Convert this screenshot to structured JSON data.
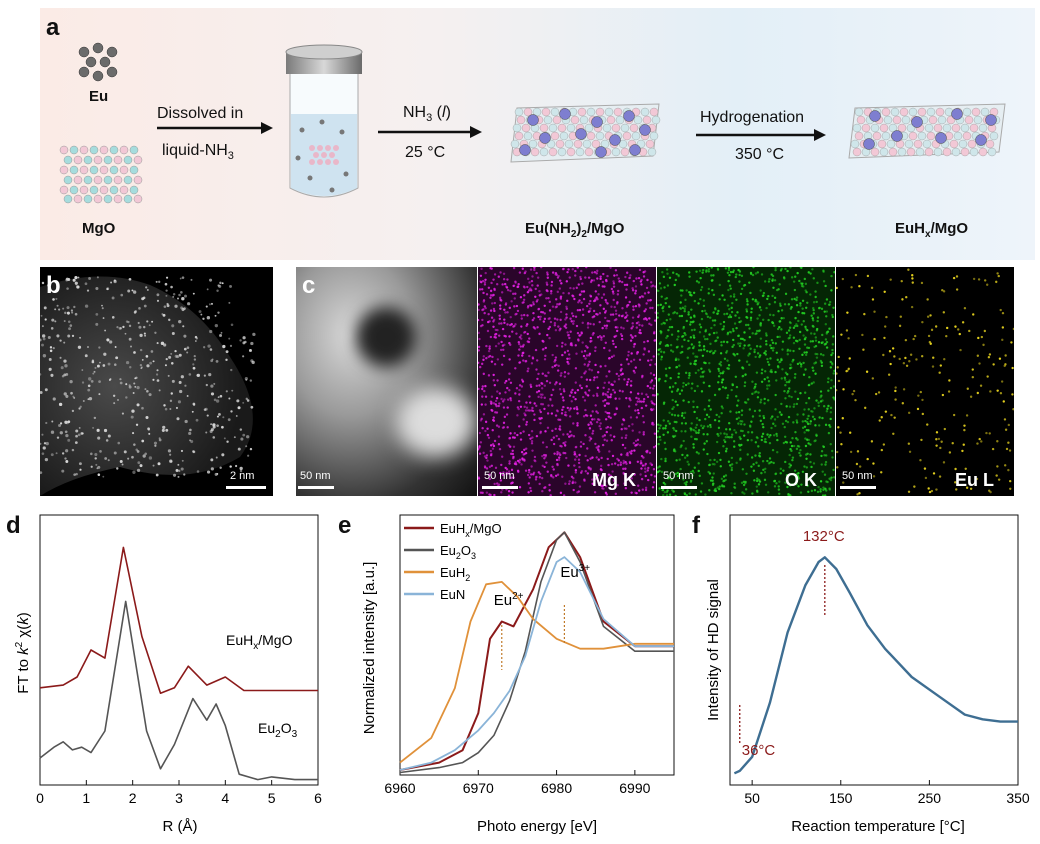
{
  "panel_labels": {
    "a": "a",
    "b": "b",
    "c": "c",
    "d": "d",
    "e": "e",
    "f": "f"
  },
  "scheme": {
    "eu_label": "Eu",
    "mgo_label": "MgO",
    "step1_top": "Dissolved in",
    "step1_bottom_prefix": "liquid-NH",
    "step1_bottom_sub": "3",
    "step2_top_prefix": "NH",
    "step2_top_sub": "3",
    "step2_top_suffix": " (",
    "step2_top_l": "l",
    "step2_top_close": ")",
    "step2_bottom": "25 °C",
    "step3_top": "Hydrogenation",
    "step3_bottom": "350 °C",
    "product1_a": "Eu(NH",
    "product1_sub": "2",
    "product1_b": ")",
    "product1_sub2": "2",
    "product1_c": "/MgO",
    "product2_a": "EuH",
    "product2_sub": "x",
    "product2_c": "/MgO"
  },
  "panel_b": {
    "scalebar": "2 nm"
  },
  "panel_c": {
    "maps": [
      {
        "scalebar": "50 nm",
        "element": ""
      },
      {
        "scalebar": "50 nm",
        "element": "Mg K"
      },
      {
        "scalebar": "50 nm",
        "element": "O K"
      },
      {
        "scalebar": "50 nm",
        "element": "Eu L"
      }
    ]
  },
  "colors": {
    "dark_red": "#8b1a1a",
    "gray": "#555555",
    "orange": "#e0913a",
    "light_blue": "#8ab4d8",
    "steel_blue": "#3e6e92",
    "magenta": "#e020e0",
    "green": "#22cc22",
    "yellow": "#e6d21e"
  },
  "chart_data": [
    {
      "panel": "d",
      "type": "line",
      "xlabel": "R (Å)",
      "ylabel": "FT to k² χ(k)",
      "xlim": [
        0,
        6
      ],
      "x_ticks": [
        "0",
        "1",
        "2",
        "3",
        "4",
        "5",
        "6"
      ],
      "series": [
        {
          "name": "EuHx/MgO",
          "x": [
            0,
            0.5,
            0.8,
            1.1,
            1.4,
            1.8,
            2.2,
            2.6,
            2.9,
            3.2,
            3.6,
            4.0,
            4.4,
            4.8,
            5.3,
            6.0
          ],
          "y": [
            0.36,
            0.37,
            0.4,
            0.5,
            0.47,
            0.88,
            0.55,
            0.34,
            0.36,
            0.44,
            0.37,
            0.4,
            0.35,
            0.35,
            0.35,
            0.35
          ]
        },
        {
          "name": "Eu2O3",
          "x": [
            0,
            0.3,
            0.5,
            0.7,
            0.9,
            1.1,
            1.4,
            1.85,
            2.3,
            2.6,
            2.9,
            3.3,
            3.6,
            3.8,
            4.0,
            4.3,
            4.7,
            5.0,
            5.5,
            6.0
          ],
          "y": [
            0.1,
            0.14,
            0.16,
            0.13,
            0.14,
            0.12,
            0.2,
            0.68,
            0.2,
            0.06,
            0.15,
            0.32,
            0.24,
            0.3,
            0.22,
            0.04,
            0.02,
            0.03,
            0.02,
            0.02
          ]
        }
      ]
    },
    {
      "panel": "e",
      "type": "line",
      "xlabel": "Photo energy [eV]",
      "ylabel": "Normalized intensity [a.u.]",
      "xlim": [
        6960,
        6995
      ],
      "x_ticks": [
        "6960",
        "6970",
        "6980",
        "6990"
      ],
      "annotations": [
        {
          "text": "Eu",
          "sup": "2+",
          "x": 6973
        },
        {
          "text": "Eu",
          "sup": "3+",
          "x": 6981
        }
      ],
      "series": [
        {
          "name": "EuHx/MgO",
          "x": [
            6960,
            6965,
            6968,
            6970,
            6971.5,
            6973,
            6974.5,
            6977,
            6979,
            6981,
            6983,
            6986,
            6990,
            6995
          ],
          "y": [
            0.02,
            0.05,
            0.1,
            0.25,
            0.55,
            0.62,
            0.6,
            0.75,
            0.92,
            0.98,
            0.88,
            0.62,
            0.52,
            0.52
          ]
        },
        {
          "name": "Eu2O3",
          "x": [
            6960,
            6965,
            6968,
            6970,
            6972,
            6974,
            6976,
            6978,
            6980,
            6981,
            6983,
            6986,
            6990,
            6995
          ],
          "y": [
            0.01,
            0.03,
            0.05,
            0.09,
            0.16,
            0.3,
            0.5,
            0.78,
            0.95,
            0.98,
            0.86,
            0.6,
            0.5,
            0.5
          ]
        },
        {
          "name": "EuH2",
          "x": [
            6960,
            6964,
            6967,
            6969,
            6971,
            6973,
            6975,
            6977,
            6980,
            6983,
            6986,
            6990,
            6995
          ],
          "y": [
            0.05,
            0.15,
            0.35,
            0.62,
            0.77,
            0.78,
            0.72,
            0.63,
            0.55,
            0.51,
            0.51,
            0.53,
            0.53
          ]
        },
        {
          "name": "EuN",
          "x": [
            6960,
            6964,
            6967,
            6970,
            6972,
            6974,
            6976,
            6978,
            6980,
            6981,
            6983,
            6986,
            6990,
            6995
          ],
          "y": [
            0.02,
            0.05,
            0.1,
            0.18,
            0.25,
            0.34,
            0.48,
            0.7,
            0.86,
            0.88,
            0.82,
            0.63,
            0.52,
            0.52
          ]
        }
      ]
    },
    {
      "panel": "f",
      "type": "line",
      "xlabel": "Reaction temperature [°C]",
      "ylabel": "Intensity of HD signal",
      "xlim": [
        25,
        350
      ],
      "x_ticks": [
        "50",
        "150",
        "250",
        "350"
      ],
      "annotations": [
        {
          "text": "132°C",
          "x": 132
        },
        {
          "text": "36°C",
          "x": 36
        }
      ],
      "series": [
        {
          "name": "HD",
          "x": [
            30,
            36,
            50,
            70,
            90,
            110,
            125,
            132,
            145,
            160,
            180,
            200,
            230,
            260,
            290,
            310,
            330,
            350
          ],
          "y": [
            0.05,
            0.06,
            0.12,
            0.35,
            0.65,
            0.85,
            0.95,
            0.97,
            0.92,
            0.82,
            0.68,
            0.58,
            0.46,
            0.38,
            0.3,
            0.28,
            0.27,
            0.27
          ]
        }
      ]
    }
  ]
}
